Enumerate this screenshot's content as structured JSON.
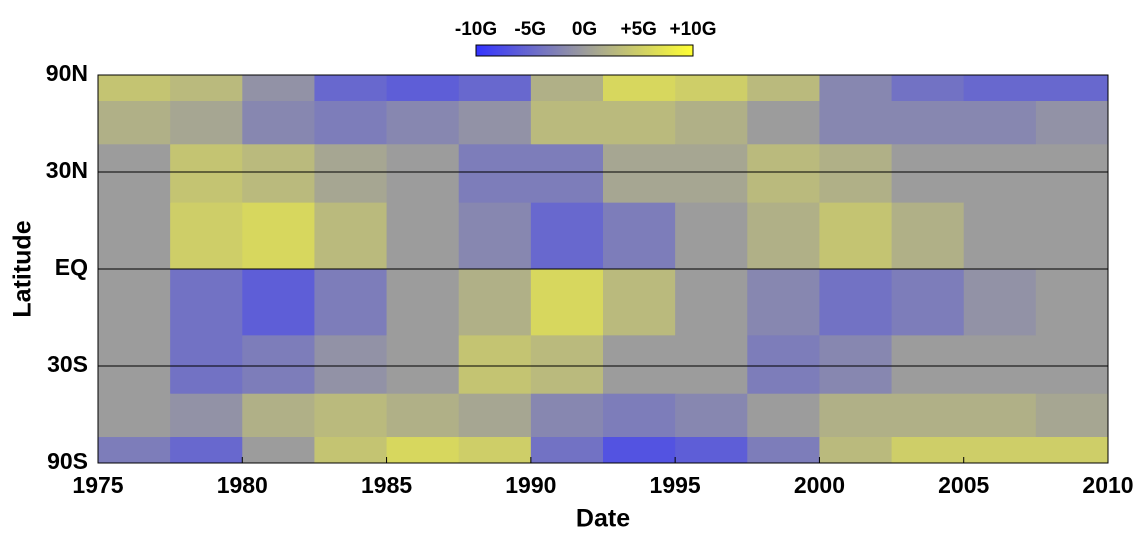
{
  "chart_data": {
    "type": "heatmap",
    "x_label": "Date",
    "y_label": "Latitude",
    "yscale": "sine",
    "xlim": [
      1975,
      2010
    ],
    "xticks": [
      1975,
      1980,
      1985,
      1990,
      1995,
      2000,
      2005,
      2010
    ],
    "ylim": [
      -90,
      90
    ],
    "yticks": [
      {
        "value": 90,
        "label": "90N"
      },
      {
        "value": 30,
        "label": "30N"
      },
      {
        "value": 0,
        "label": "EQ"
      },
      {
        "value": -30,
        "label": "30S"
      },
      {
        "value": -90,
        "label": "90S"
      }
    ],
    "grid": true,
    "x_bins": [
      1975,
      1977.5,
      1980,
      1982.5,
      1985,
      1987.5,
      1990,
      1992.5,
      1995,
      1997.5,
      2000,
      2002.5,
      2005,
      2007.5,
      2010
    ],
    "y_bins": [
      90,
      60,
      40,
      20,
      0,
      -20,
      -40,
      -60,
      -90
    ],
    "z": [
      [
        4,
        3,
        -1,
        -5,
        -6,
        -5,
        2,
        6,
        5,
        3,
        -2,
        -4,
        -5,
        -5
      ],
      [
        2,
        1,
        -2,
        -3,
        -2,
        -1,
        3,
        3,
        2,
        0,
        -2,
        -2,
        -2,
        -1
      ],
      [
        0,
        4,
        3,
        1,
        0,
        -3,
        -3,
        1,
        1,
        3,
        2,
        0,
        0,
        0
      ],
      [
        0,
        5,
        6,
        3,
        0,
        -2,
        -5,
        -3,
        0,
        2,
        4,
        2,
        0,
        0
      ],
      [
        0,
        -4,
        -6,
        -3,
        0,
        2,
        6,
        3,
        0,
        -2,
        -4,
        -3,
        -1,
        0
      ],
      [
        0,
        -4,
        -3,
        -1,
        0,
        4,
        3,
        0,
        0,
        -3,
        -2,
        0,
        0,
        0
      ],
      [
        0,
        -1,
        2,
        3,
        2,
        1,
        -2,
        -3,
        -2,
        0,
        2,
        2,
        2,
        1
      ],
      [
        -3,
        -5,
        0,
        4,
        6,
        5,
        -4,
        -7,
        -6,
        -3,
        3,
        5,
        5,
        5
      ]
    ],
    "colormap": [
      "#3434ff",
      "#9c9c9c",
      "#ffff34"
    ],
    "colorbar": {
      "lim": [
        -10,
        10
      ],
      "ticks": [
        {
          "value": -10,
          "label": "-10G"
        },
        {
          "value": -5,
          "label": "-5G"
        },
        {
          "value": 0,
          "label": "0G"
        },
        {
          "value": 5,
          "label": "+5G"
        },
        {
          "value": 10,
          "label": "+10G"
        }
      ]
    }
  }
}
